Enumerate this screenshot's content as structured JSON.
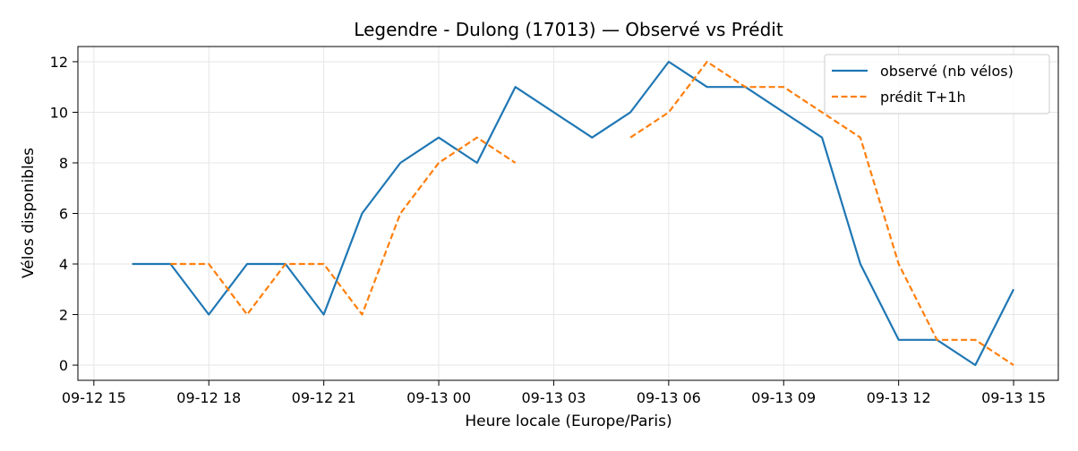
{
  "chart_data": {
    "type": "line",
    "title": "Legendre - Dulong (17013) — Observé vs Prédit",
    "xlabel": "Heure locale (Europe/Paris)",
    "ylabel": "Vélos disponibles",
    "x_ticks": [
      "09-12 15",
      "09-12 18",
      "09-12 21",
      "09-13 00",
      "09-13 03",
      "09-13 06",
      "09-13 09",
      "09-13 12",
      "09-13 15"
    ],
    "ylim": [
      -0.6,
      12.6
    ],
    "y_ticks": [
      0,
      2,
      4,
      6,
      8,
      10,
      12
    ],
    "xlim": [
      "09-12 14:35",
      "09-13 16:10"
    ],
    "grid": true,
    "legend_position": "top-right",
    "series": [
      {
        "name": "observé (nb vélos)",
        "color": "#1f77b4",
        "style": "solid",
        "points": [
          {
            "x": "09-12 16:00",
            "y": 4
          },
          {
            "x": "09-12 17:00",
            "y": 4
          },
          {
            "x": "09-12 18:00",
            "y": 2
          },
          {
            "x": "09-12 19:00",
            "y": 4
          },
          {
            "x": "09-12 20:00",
            "y": 4
          },
          {
            "x": "09-12 21:00",
            "y": 2
          },
          {
            "x": "09-12 22:00",
            "y": 6
          },
          {
            "x": "09-12 23:00",
            "y": 8
          },
          {
            "x": "09-13 00:00",
            "y": 9
          },
          {
            "x": "09-13 01:00",
            "y": 8
          },
          {
            "x": "09-13 02:00",
            "y": 11
          },
          {
            "x": "09-13 04:00",
            "y": 9
          },
          {
            "x": "09-13 05:00",
            "y": 10
          },
          {
            "x": "09-13 06:00",
            "y": 12
          },
          {
            "x": "09-13 07:00",
            "y": 11
          },
          {
            "x": "09-13 08:00",
            "y": 11
          },
          {
            "x": "09-13 10:00",
            "y": 9
          },
          {
            "x": "09-13 11:00",
            "y": 4
          },
          {
            "x": "09-13 12:00",
            "y": 1
          },
          {
            "x": "09-13 13:00",
            "y": 1
          },
          {
            "x": "09-13 14:00",
            "y": 0
          },
          {
            "x": "09-13 15:00",
            "y": 3
          }
        ]
      },
      {
        "name": "prédit T+1h",
        "color": "#ff7f0e",
        "style": "dashed",
        "segments": [
          [
            {
              "x": "09-12 17:00",
              "y": 4
            },
            {
              "x": "09-12 18:00",
              "y": 4
            },
            {
              "x": "09-12 19:00",
              "y": 2
            },
            {
              "x": "09-12 20:00",
              "y": 4
            },
            {
              "x": "09-12 21:00",
              "y": 4
            },
            {
              "x": "09-12 22:00",
              "y": 2
            },
            {
              "x": "09-12 23:00",
              "y": 6
            },
            {
              "x": "09-13 00:00",
              "y": 8
            },
            {
              "x": "09-13 01:00",
              "y": 9
            },
            {
              "x": "09-13 02:00",
              "y": 8
            }
          ],
          [
            {
              "x": "09-13 05:00",
              "y": 9
            },
            {
              "x": "09-13 06:00",
              "y": 10
            },
            {
              "x": "09-13 07:00",
              "y": 12
            },
            {
              "x": "09-13 08:00",
              "y": 11
            },
            {
              "x": "09-13 09:00",
              "y": 11
            },
            {
              "x": "09-13 10:00",
              "y": 10
            },
            {
              "x": "09-13 11:00",
              "y": 9
            },
            {
              "x": "09-13 12:00",
              "y": 4
            },
            {
              "x": "09-13 13:00",
              "y": 1
            },
            {
              "x": "09-13 14:00",
              "y": 1
            },
            {
              "x": "09-13 15:00",
              "y": 0
            }
          ]
        ]
      }
    ]
  }
}
